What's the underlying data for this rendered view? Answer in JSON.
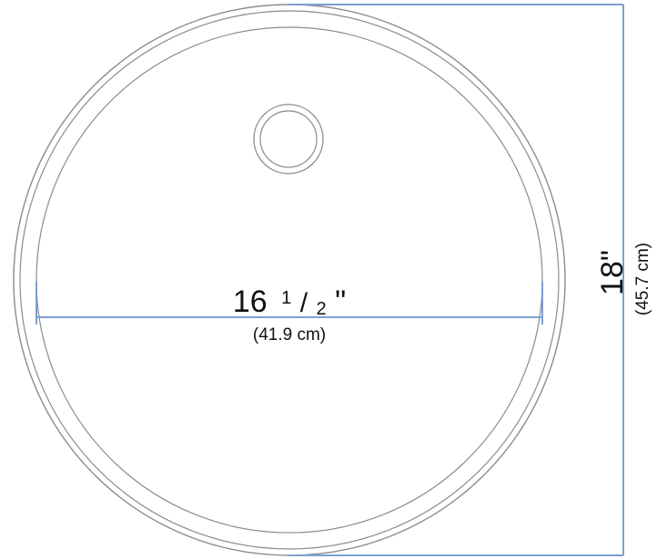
{
  "diagram": {
    "width_dimension": {
      "whole": "16",
      "fraction_numerator": "1",
      "fraction_slash": "/",
      "fraction_denominator": "2",
      "inch_mark": "\"",
      "metric": "(41.9 cm)"
    },
    "height_dimension": {
      "imperial": "18\"",
      "metric": "(45.7 cm)"
    },
    "colors": {
      "outline": "#8c8c8c",
      "dimension_line": "#7d9fd3",
      "text": "#111111"
    }
  }
}
